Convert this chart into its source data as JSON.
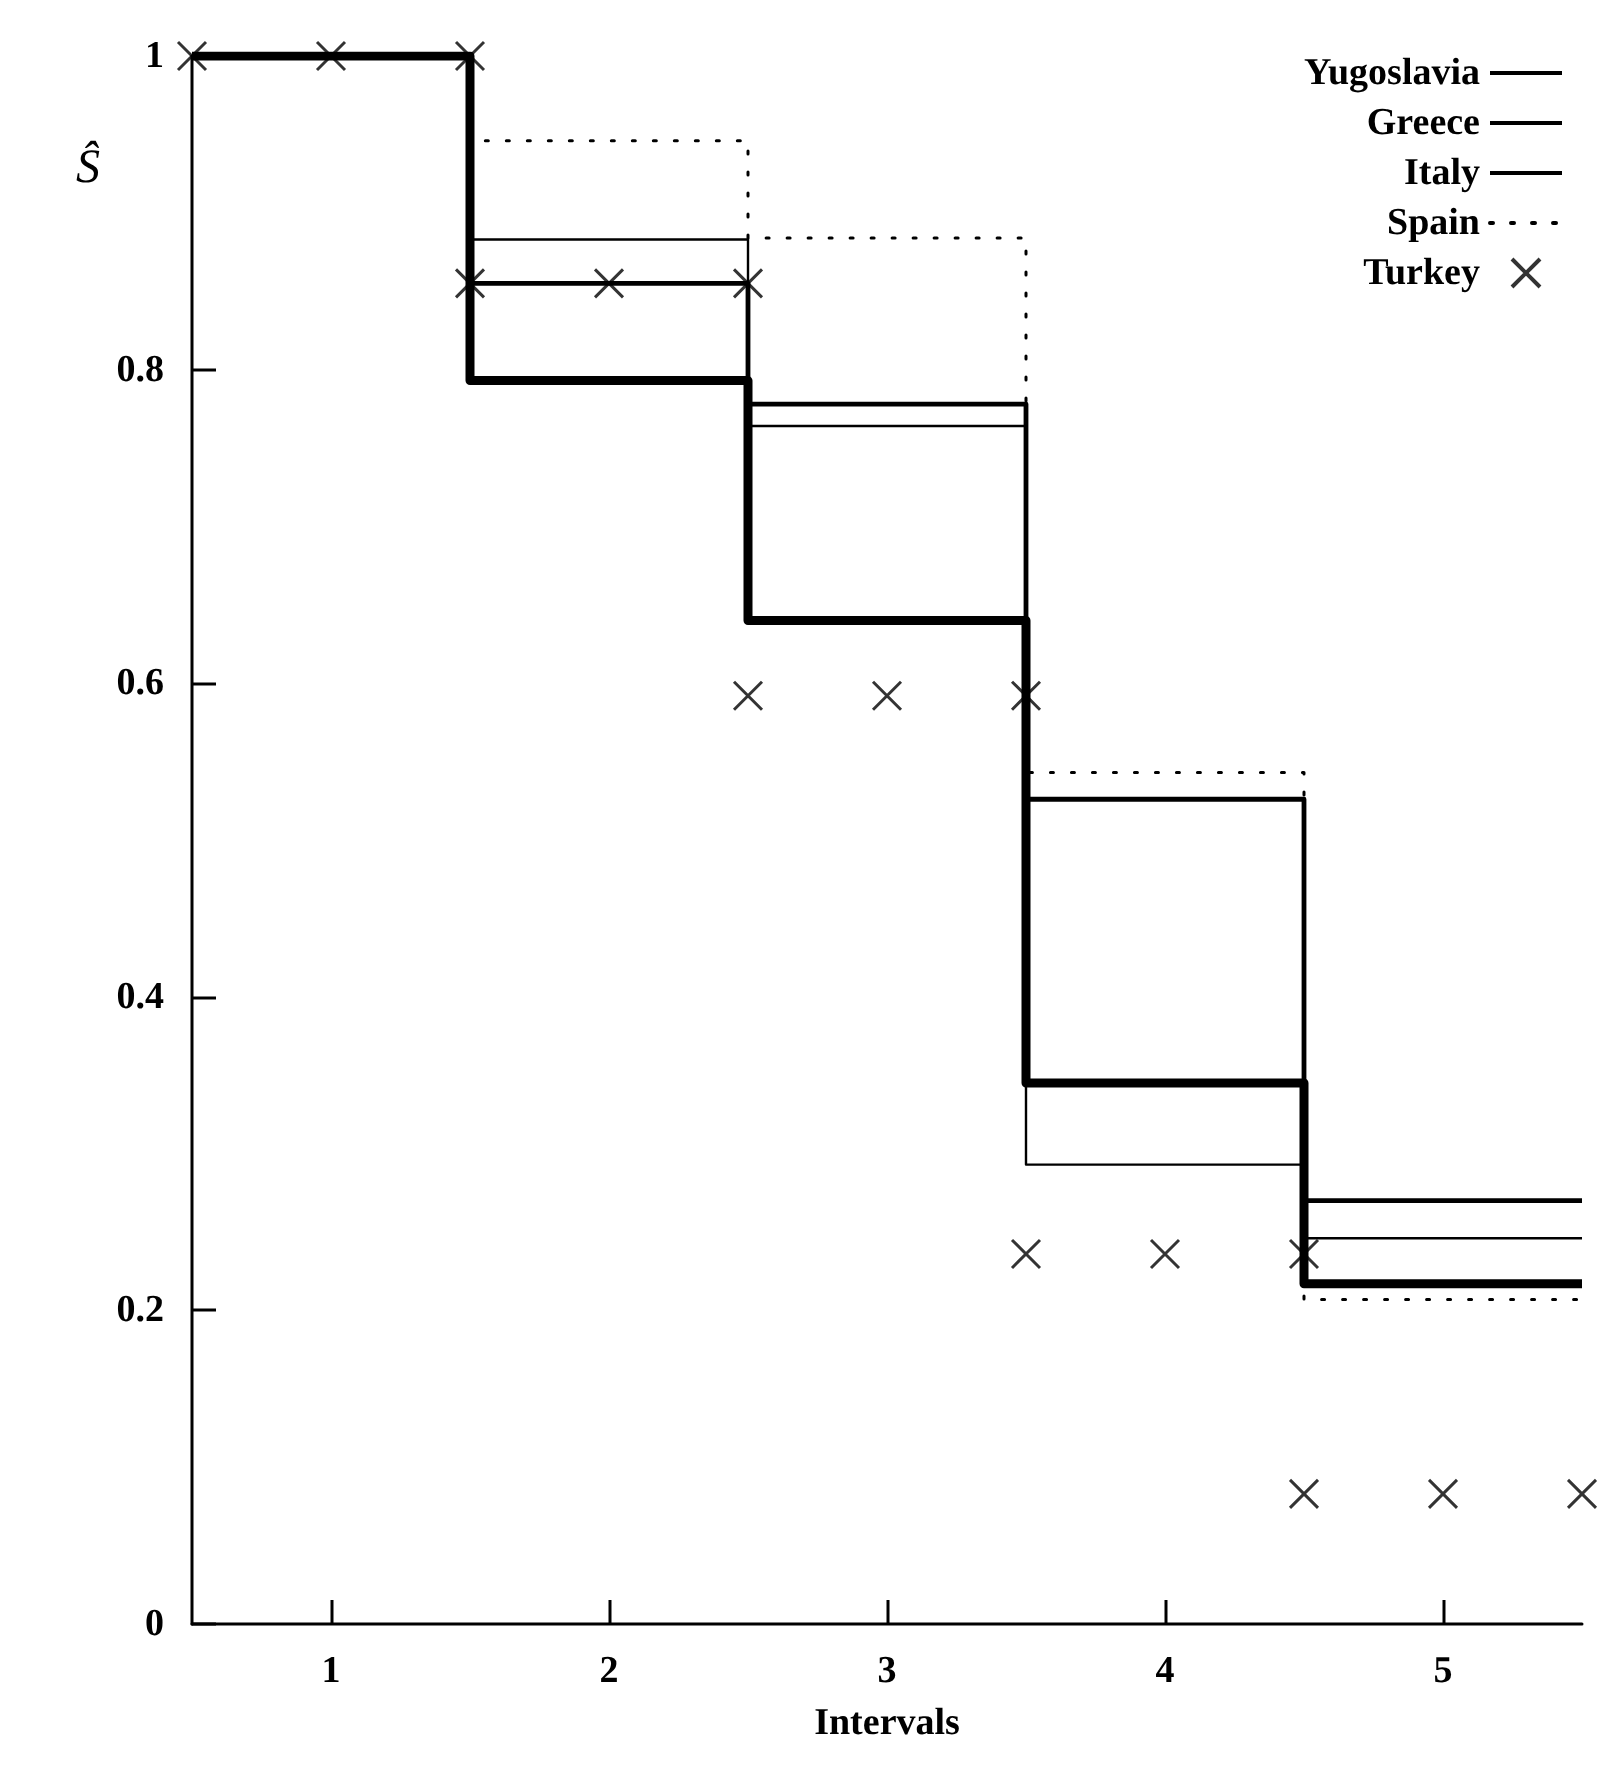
{
  "chart_data": {
    "type": "step",
    "xlabel": "Intervals",
    "ylabel": "Ŝ",
    "x": [
      0.5,
      1,
      2,
      3,
      4,
      5,
      5.5
    ],
    "series": [
      {
        "name": "Yugoslavia",
        "color": "#000000",
        "values": [
          1,
          1,
          0.883,
          0.764,
          0.293,
          0.246,
          0.246
        ]
      },
      {
        "name": "Greece",
        "color": "#000000",
        "values": [
          1,
          1,
          0.855,
          0.778,
          0.526,
          0.27,
          0.27
        ]
      },
      {
        "name": "Italy",
        "color": "#000000",
        "values": [
          1,
          1,
          0.793,
          0.64,
          0.345,
          0.217,
          0.217
        ]
      },
      {
        "name": "Spain",
        "color": "#000000",
        "line_style": "dotted",
        "values": [
          1,
          1,
          0.946,
          0.884,
          0.543,
          0.207,
          0.207
        ]
      },
      {
        "name": "Turkey",
        "color": "#000000",
        "type": "scatter",
        "marker": "cross",
        "x": [
          0.5,
          1,
          1.5,
          1.5,
          2,
          2.5,
          2.5,
          3,
          3.5,
          3.5,
          4,
          4.5,
          4.5,
          5,
          5.5
        ],
        "values": [
          1,
          1,
          1,
          0.855,
          0.855,
          0.855,
          0.592,
          0.592,
          0.592,
          0.236,
          0.236,
          0.236,
          0.083,
          0.083,
          0.083
        ]
      }
    ],
    "xlim": [
      0.5,
      5.5
    ],
    "xticks": [
      1,
      2,
      3,
      4,
      5
    ],
    "ylim": [
      0,
      1
    ],
    "yticks": [
      0,
      0.2,
      0.4,
      0.6,
      0.8,
      1
    ],
    "grid": false,
    "legend": "top right",
    "marker": "none"
  }
}
